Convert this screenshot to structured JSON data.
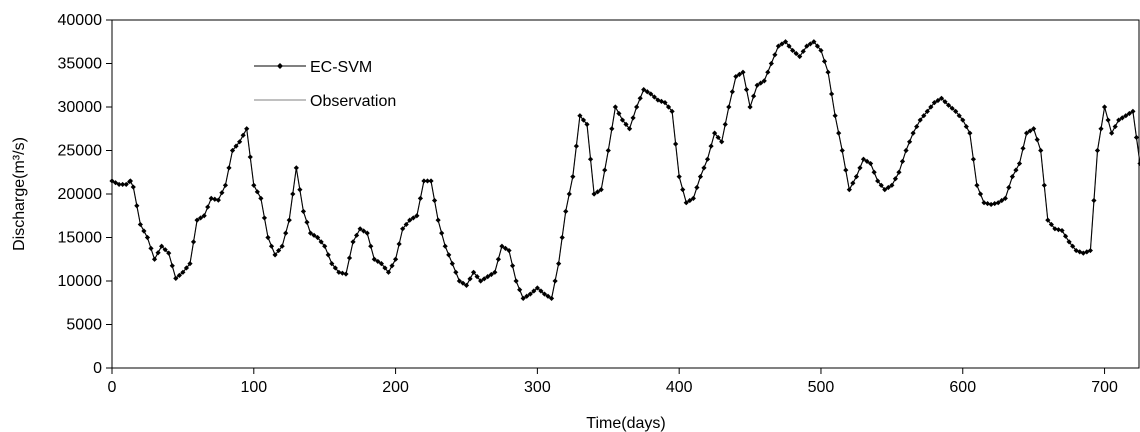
{
  "chart_data": {
    "type": "line",
    "title": "",
    "xlabel": "Time(days)",
    "ylabel": "Discharge(m³/s)",
    "xlim": [
      0,
      725
    ],
    "ylim": [
      0,
      40000
    ],
    "xticks": [
      0,
      100,
      200,
      300,
      400,
      500,
      600,
      700
    ],
    "yticks": [
      0,
      5000,
      10000,
      15000,
      20000,
      25000,
      30000,
      35000,
      40000
    ],
    "grid": false,
    "legend_position": "top-left",
    "series": [
      {
        "name": "EC-SVM",
        "color": "#000000",
        "marker": "diamond",
        "x": [
          0,
          5,
          10,
          13,
          15,
          20,
          25,
          30,
          35,
          40,
          45,
          50,
          55,
          60,
          65,
          70,
          75,
          80,
          85,
          90,
          95,
          100,
          105,
          110,
          115,
          120,
          125,
          130,
          135,
          140,
          145,
          150,
          155,
          160,
          165,
          170,
          175,
          180,
          185,
          190,
          195,
          200,
          205,
          210,
          215,
          220,
          225,
          230,
          235,
          240,
          245,
          250,
          255,
          260,
          265,
          270,
          275,
          280,
          285,
          290,
          295,
          300,
          305,
          310,
          315,
          320,
          325,
          330,
          335,
          340,
          345,
          350,
          355,
          360,
          365,
          370,
          375,
          380,
          385,
          390,
          395,
          400,
          405,
          410,
          415,
          420,
          425,
          430,
          435,
          440,
          445,
          450,
          455,
          460,
          465,
          470,
          475,
          480,
          485,
          490,
          495,
          500,
          505,
          510,
          515,
          520,
          525,
          530,
          535,
          540,
          545,
          550,
          555,
          560,
          565,
          570,
          575,
          580,
          585,
          590,
          595,
          600,
          605,
          610,
          615,
          620,
          625,
          630,
          635,
          640,
          645,
          650,
          655,
          660,
          665,
          670,
          675,
          680,
          685,
          690,
          695,
          700,
          705,
          710,
          715,
          720,
          725
        ],
        "y": [
          21500,
          21100,
          21100,
          21500,
          20800,
          16500,
          15000,
          12500,
          14000,
          13200,
          10300,
          11000,
          12000,
          17000,
          17500,
          19500,
          19300,
          21000,
          25000,
          26000,
          27500,
          21000,
          19500,
          15000,
          13000,
          14000,
          17000,
          23000,
          18000,
          15500,
          15000,
          14000,
          12000,
          11000,
          10800,
          14500,
          16000,
          15500,
          12500,
          12000,
          11000,
          12500,
          16000,
          17000,
          17500,
          21500,
          21500,
          17000,
          14000,
          12000,
          10000,
          9500,
          11000,
          10000,
          10500,
          11000,
          14000,
          13500,
          10000,
          8000,
          8500,
          9200,
          8500,
          8000,
          12000,
          18000,
          22000,
          29000,
          28000,
          20000,
          20500,
          25000,
          30000,
          28500,
          27500,
          30000,
          32000,
          31500,
          30800,
          30500,
          29500,
          22000,
          19000,
          19500,
          22000,
          24000,
          27000,
          26000,
          30000,
          33500,
          34000,
          30000,
          32500,
          33000,
          35000,
          37000,
          37500,
          36500,
          35800,
          37000,
          37500,
          36500,
          34000,
          29000,
          25000,
          20500,
          22000,
          24000,
          23500,
          21500,
          20500,
          21000,
          22500,
          25000,
          27000,
          28500,
          29500,
          30500,
          31000,
          30200,
          29500,
          28500,
          27000,
          21000,
          19000,
          18800,
          19000,
          19500,
          22000,
          23500,
          27000,
          27500,
          25000,
          17000,
          16000,
          15800,
          14500,
          13500,
          13200,
          13500,
          25000,
          30000,
          27000,
          28500,
          29000,
          29500,
          23500
        ]
      },
      {
        "name": "Observation",
        "color": "#808080",
        "marker": "none",
        "x": [
          0,
          5,
          10,
          13,
          15,
          20,
          25,
          30,
          35,
          40,
          45,
          50,
          55,
          60,
          65,
          70,
          75,
          80,
          85,
          90,
          95,
          100,
          105,
          110,
          115,
          120,
          125,
          130,
          135,
          140,
          145,
          150,
          155,
          160,
          165,
          170,
          175,
          180,
          185,
          190,
          195,
          200,
          205,
          210,
          215,
          220,
          225,
          230,
          235,
          240,
          245,
          250,
          255,
          260,
          265,
          270,
          275,
          280,
          285,
          290,
          295,
          300,
          305,
          310,
          315,
          320,
          325,
          330,
          335,
          340,
          345,
          350,
          355,
          360,
          365,
          370,
          375,
          380,
          385,
          390,
          395,
          400,
          405,
          410,
          415,
          420,
          425,
          430,
          435,
          440,
          445,
          450,
          455,
          460,
          465,
          470,
          475,
          480,
          485,
          490,
          495,
          500,
          505,
          510,
          515,
          520,
          525,
          530,
          535,
          540,
          545,
          550,
          555,
          560,
          565,
          570,
          575,
          580,
          585,
          590,
          595,
          600,
          605,
          610,
          615,
          620,
          625,
          630,
          635,
          640,
          645,
          650,
          655,
          660,
          665,
          670,
          675,
          680,
          685,
          690,
          695,
          700,
          705,
          710,
          715,
          720,
          725
        ],
        "y": [
          21500,
          21100,
          21100,
          21500,
          20800,
          16500,
          15000,
          12500,
          14000,
          13200,
          10300,
          11000,
          12000,
          17000,
          17500,
          19500,
          19300,
          21000,
          25000,
          26000,
          27500,
          21000,
          19500,
          15000,
          13000,
          14000,
          17000,
          23000,
          18000,
          15500,
          15000,
          14000,
          12000,
          11000,
          10800,
          14500,
          16000,
          15500,
          12500,
          12000,
          11000,
          12500,
          16000,
          17000,
          17500,
          21500,
          21500,
          17000,
          14000,
          12000,
          10000,
          9500,
          11000,
          10000,
          10500,
          11000,
          14000,
          13500,
          10000,
          8000,
          8500,
          9200,
          8500,
          8000,
          12000,
          18000,
          22000,
          29000,
          28000,
          20000,
          20500,
          25000,
          30000,
          28500,
          27500,
          30000,
          32000,
          31500,
          30800,
          30500,
          29500,
          22000,
          19000,
          19500,
          22000,
          24000,
          27000,
          26000,
          30000,
          33500,
          34000,
          30000,
          32500,
          33000,
          35000,
          37000,
          37500,
          36500,
          35800,
          37000,
          37500,
          36500,
          34000,
          29000,
          25000,
          20500,
          22000,
          24000,
          23500,
          21500,
          20500,
          21000,
          22500,
          25000,
          27000,
          28500,
          29500,
          30500,
          31000,
          30200,
          29500,
          28500,
          27000,
          21000,
          19000,
          18800,
          19000,
          19500,
          22000,
          23500,
          27000,
          27500,
          25000,
          17000,
          16000,
          15800,
          14500,
          13500,
          13200,
          13500,
          25000,
          30000,
          27000,
          28500,
          29000,
          29500,
          23500
        ]
      }
    ]
  }
}
